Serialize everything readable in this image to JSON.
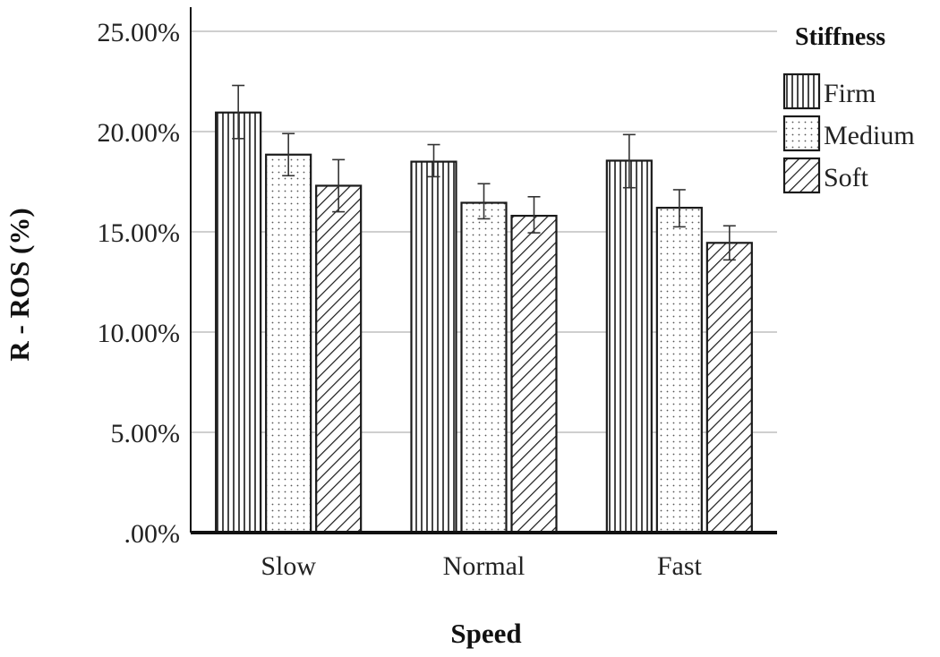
{
  "chart_data": {
    "type": "bar",
    "title": "",
    "xlabel": "Speed",
    "ylabel": "R - ROS (%)",
    "categories": [
      "Slow",
      "Normal",
      "Fast"
    ],
    "ylim": [
      0,
      0.25
    ],
    "yticks": [
      0,
      0.05,
      0.1,
      0.15,
      0.2,
      0.25
    ],
    "ytick_labels": [
      ".00%",
      "5.00%",
      "10.00%",
      "15.00%",
      "20.00%",
      "25.00%"
    ],
    "grid": true,
    "error_bars": true,
    "legend": {
      "title": "Stiffness",
      "position": "right"
    },
    "series": [
      {
        "name": "Firm",
        "pattern": "vertical-lines",
        "values": [
          0.2095,
          0.185,
          0.1855
        ],
        "err_low": [
          0.1965,
          0.1775,
          0.172
        ],
        "err_high": [
          0.223,
          0.1935,
          0.1985
        ]
      },
      {
        "name": "Medium",
        "pattern": "dots",
        "values": [
          0.1885,
          0.1645,
          0.162
        ],
        "err_low": [
          0.178,
          0.1565,
          0.1525
        ],
        "err_high": [
          0.199,
          0.174,
          0.171
        ]
      },
      {
        "name": "Soft",
        "pattern": "diagonal-lines",
        "values": [
          0.173,
          0.158,
          0.1445
        ],
        "err_low": [
          0.16,
          0.1495,
          0.136
        ],
        "err_high": [
          0.186,
          0.1675,
          0.153
        ]
      }
    ],
    "colors": {
      "bar_fill": "#ffffff",
      "bar_stroke": "#1a1a1a",
      "grid": "#cfcfcf",
      "axis": "#111111"
    }
  }
}
